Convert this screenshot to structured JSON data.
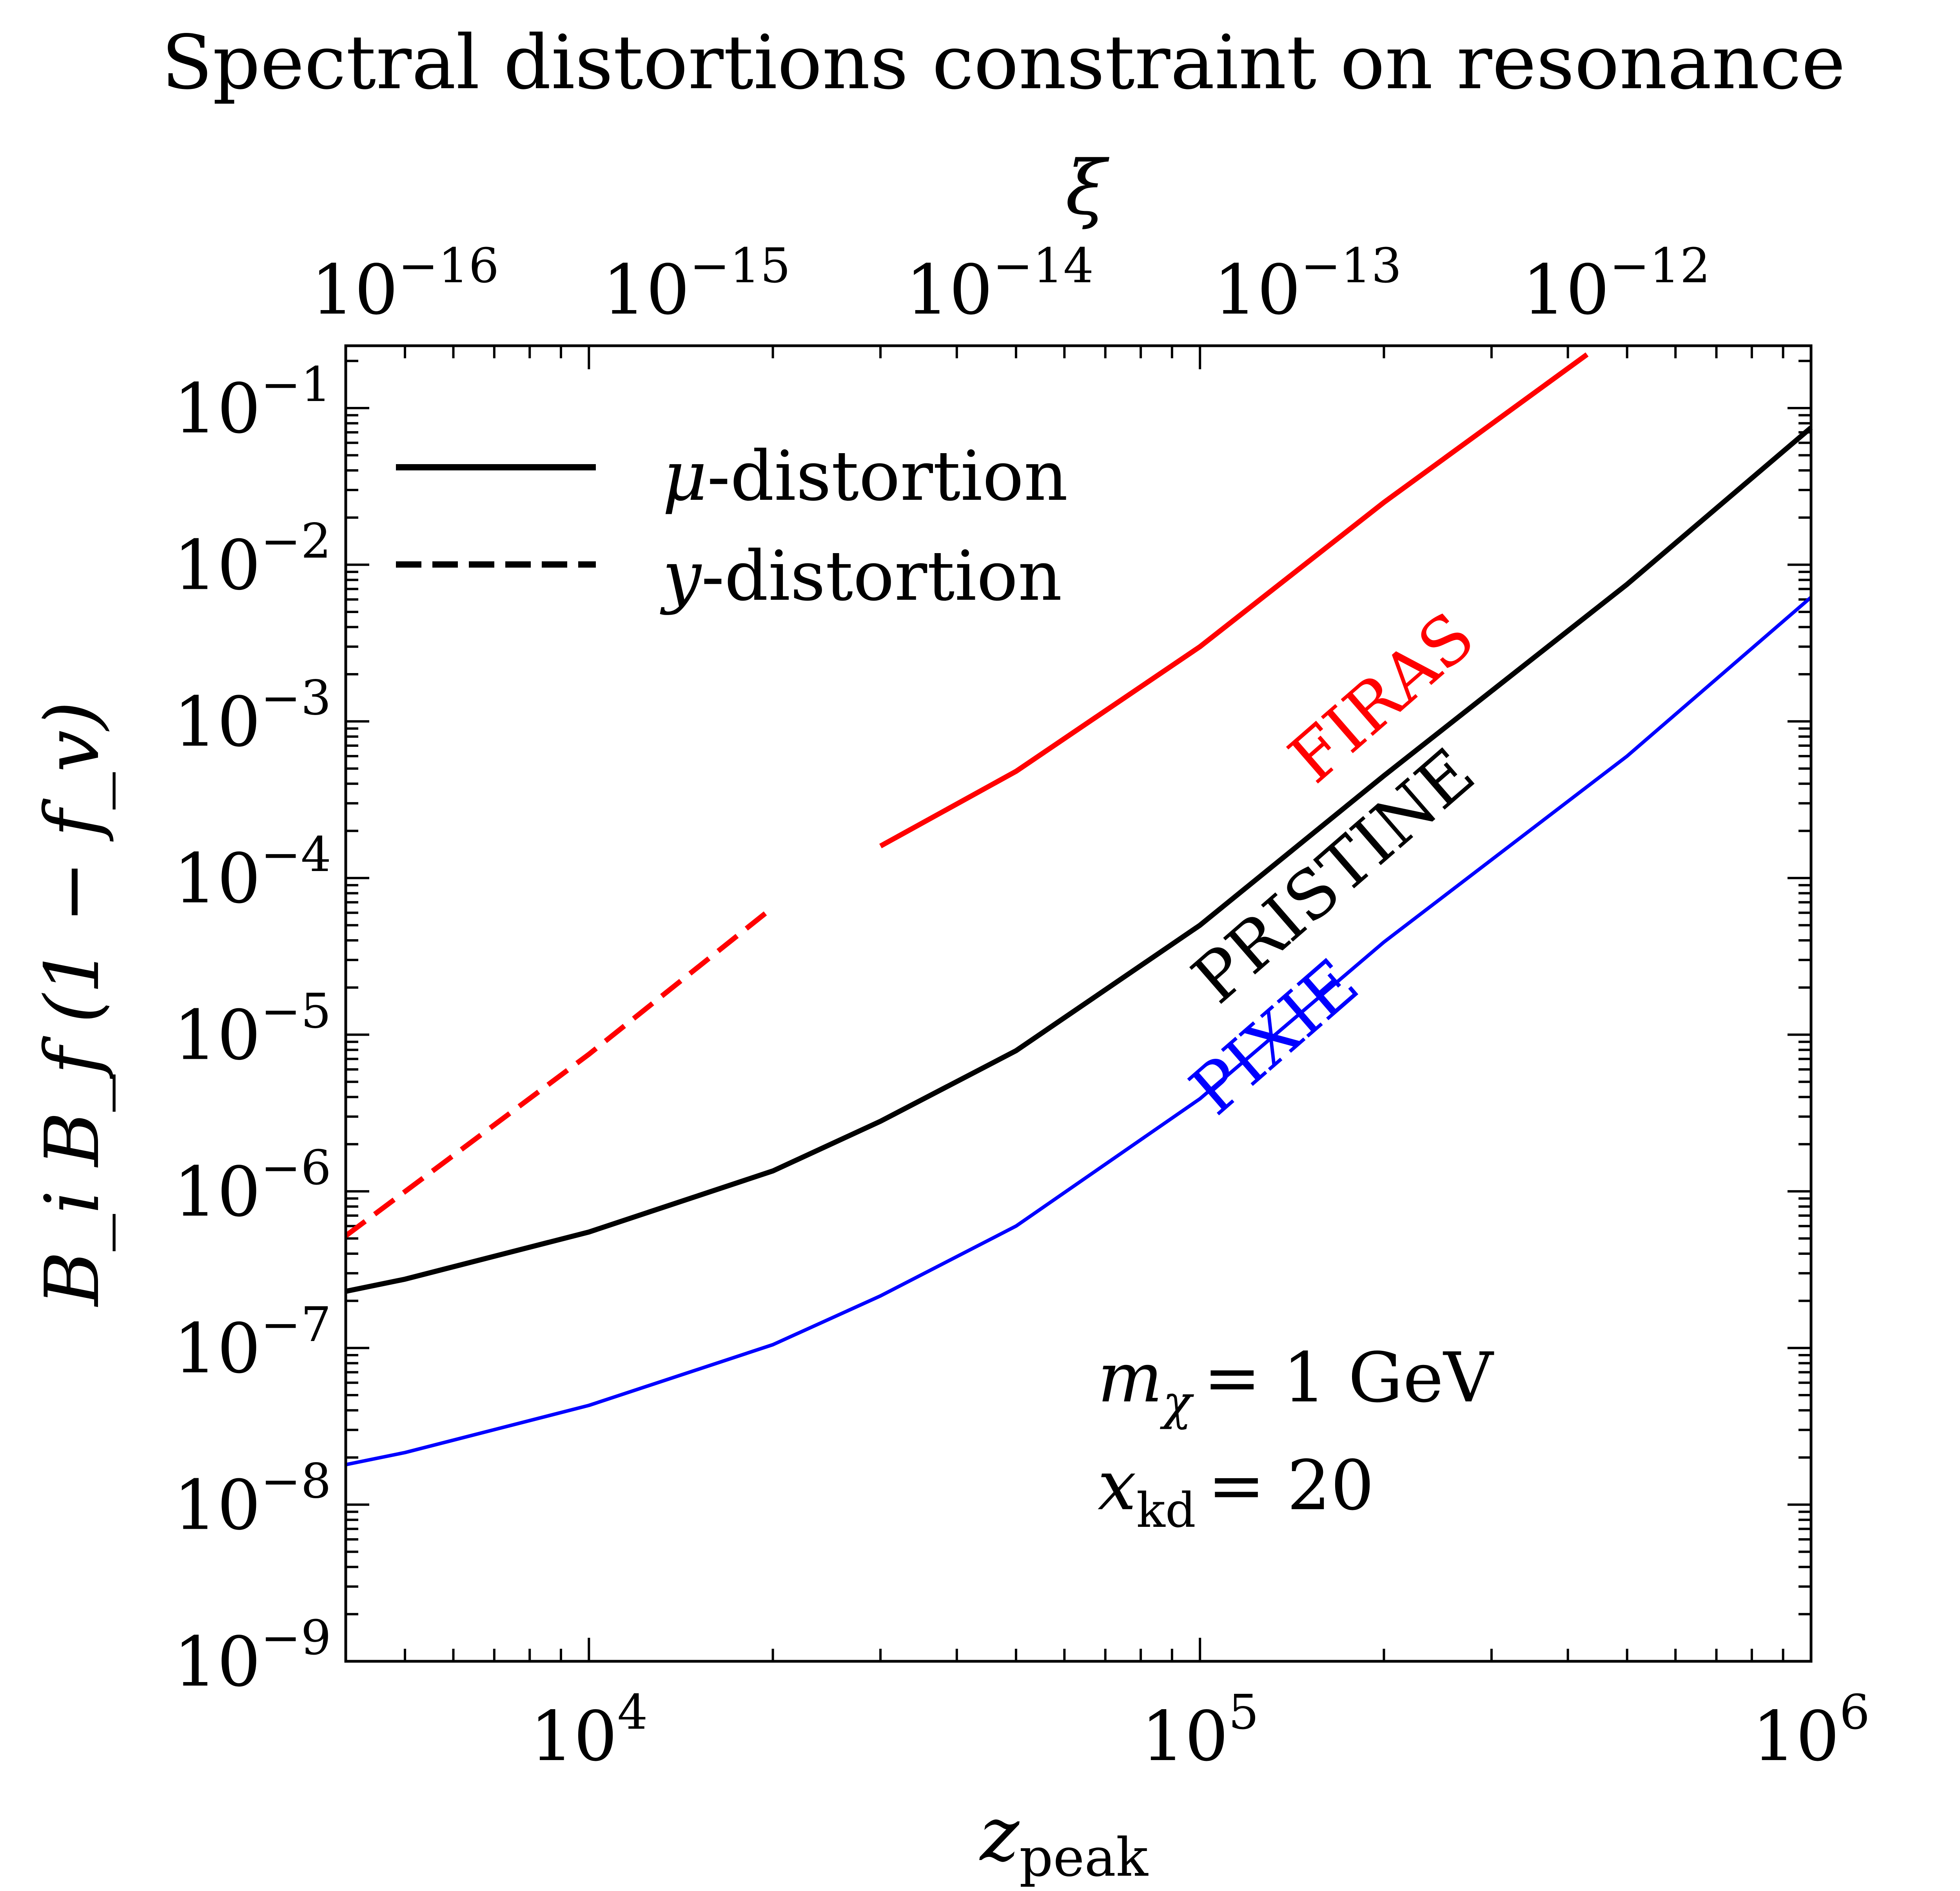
{
  "chart_data": {
    "type": "line",
    "title": "Spectral distortions constraint on resonance",
    "xlabel": "z",
    "xlabel_sub": "peak",
    "ylabel": "B_i B_f (1 − f_v)",
    "top_axis_label": "ξ",
    "x_scale": "log",
    "y_scale": "log",
    "xlim": [
      4000,
      1000000
    ],
    "ylim": [
      1e-09,
      0.25
    ],
    "x_tick_labels": [
      {
        "value": 10000,
        "base": "10",
        "exp": "4"
      },
      {
        "value": 100000,
        "base": "10",
        "exp": "5"
      },
      {
        "value": 1000000,
        "base": "10",
        "exp": "6"
      }
    ],
    "y_tick_labels": [
      {
        "value": 1e-09,
        "base": "10",
        "exp": "−9"
      },
      {
        "value": 1e-08,
        "base": "10",
        "exp": "−8"
      },
      {
        "value": 1e-07,
        "base": "10",
        "exp": "−7"
      },
      {
        "value": 1e-06,
        "base": "10",
        "exp": "−6"
      },
      {
        "value": 1e-05,
        "base": "10",
        "exp": "−5"
      },
      {
        "value": 0.0001,
        "base": "10",
        "exp": "−4"
      },
      {
        "value": 0.001,
        "base": "10",
        "exp": "−3"
      },
      {
        "value": 0.01,
        "base": "10",
        "exp": "−2"
      },
      {
        "value": 0.1,
        "base": "10",
        "exp": "−1"
      }
    ],
    "top_tick_labels": [
      {
        "z": 5000,
        "base": "10",
        "exp": "−16"
      },
      {
        "z": 15000,
        "base": "10",
        "exp": "−15"
      },
      {
        "z": 47000,
        "base": "10",
        "exp": "−14"
      },
      {
        "z": 150000,
        "base": "10",
        "exp": "−13"
      },
      {
        "z": 480000,
        "base": "10",
        "exp": "−12"
      }
    ],
    "series": [
      {
        "name": "FIRAS",
        "color": "#ff0000",
        "style": "dashed",
        "distortion": "y",
        "x": [
          4000,
          10000,
          20000
        ],
        "y": [
          5.2e-07,
          7.5e-06,
          6.5e-05
        ]
      },
      {
        "name": "FIRAS",
        "color": "#ff0000",
        "style": "solid",
        "distortion": "mu",
        "x": [
          30000,
          50000,
          100000,
          200000,
          430000
        ],
        "y": [
          0.00016,
          0.00048,
          0.003,
          0.025,
          0.22
        ]
      },
      {
        "name": "PRISTINE",
        "color": "#000000",
        "style": "solid",
        "distortion": "mu",
        "x": [
          4000,
          5000,
          10000,
          20000,
          30000,
          50000,
          100000,
          200000,
          500000,
          1000000
        ],
        "y": [
          2.3e-07,
          2.75e-07,
          5.5e-07,
          1.35e-06,
          2.8e-06,
          7.9e-06,
          5e-05,
          0.00045,
          0.0075,
          0.075
        ]
      },
      {
        "name": "PIXIE",
        "color": "#0000ff",
        "style": "solid",
        "distortion": "mu",
        "x": [
          4000,
          5000,
          10000,
          20000,
          30000,
          50000,
          100000,
          200000,
          500000,
          1000000
        ],
        "y": [
          1.8e-08,
          2.15e-08,
          4.3e-08,
          1.05e-07,
          2.15e-07,
          6e-07,
          3.9e-06,
          3.9e-05,
          0.0006,
          0.0062
        ]
      }
    ],
    "curve_labels": [
      {
        "text": "FIRAS",
        "color": "#ff0000",
        "x": 210000,
        "y": 0.0011,
        "angle": -41
      },
      {
        "text": "PRISTINE",
        "color": "#000000",
        "x": 175000,
        "y": 8e-05,
        "angle": -41
      },
      {
        "text": "PIXIE",
        "color": "#0000ff",
        "x": 140000,
        "y": 7.5e-06,
        "angle": -41
      }
    ],
    "legend": {
      "position": "top-left",
      "items": [
        {
          "symbol": "μ",
          "label": "-distortion",
          "style": "solid"
        },
        {
          "symbol": "y",
          "label": "-distortion",
          "style": "dashed"
        }
      ]
    },
    "annotations": {
      "mass_symbol": "m",
      "mass_subscript": "χ",
      "mass_value": "= 1 GeV",
      "xkd_symbol": "x",
      "xkd_subscript": "kd",
      "xkd_value": "= 20"
    }
  }
}
